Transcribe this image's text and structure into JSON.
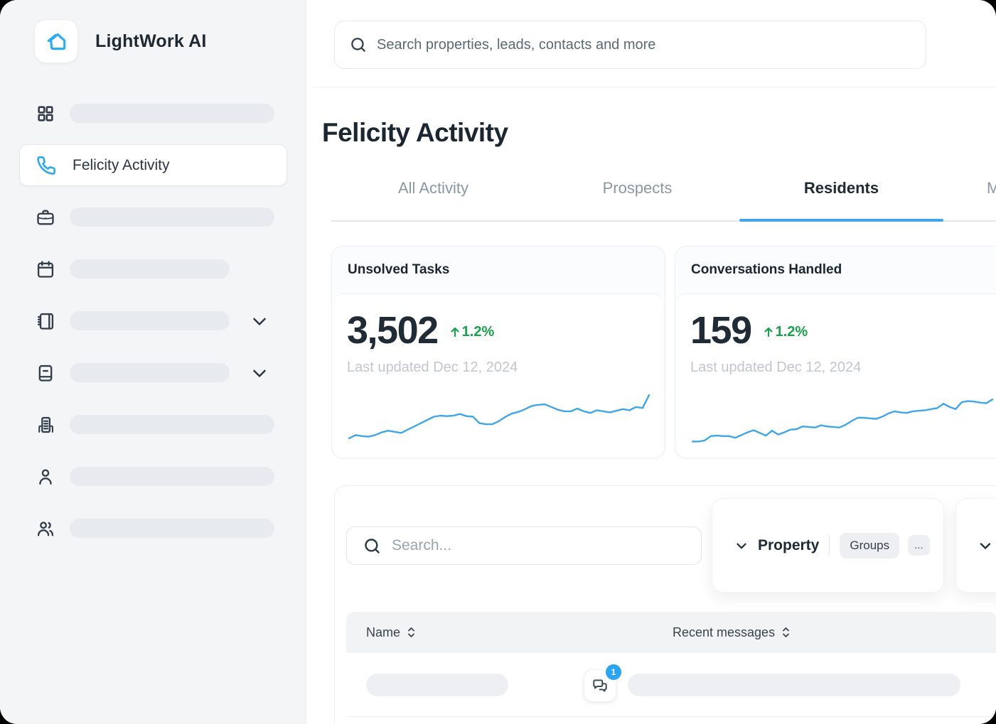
{
  "app": {
    "brand": "LightWork AI"
  },
  "sidebar": {
    "logo_label": "LightWork AI",
    "active_item": {
      "label": "Felicity Activity",
      "icon": "phone-icon"
    },
    "skeleton_icons": [
      "grid-icon",
      "briefcase-icon",
      "calendar-icon",
      "notebook-icon",
      "book-icon",
      "building-icon",
      "user-icon",
      "users-icon"
    ]
  },
  "topbar": {
    "search_placeholder": "Search properties, leads, contacts and more"
  },
  "page": {
    "title": "Felicity Activity"
  },
  "tabs": {
    "items": [
      {
        "label": "All Activity",
        "active": false
      },
      {
        "label": "Prospects",
        "active": false
      },
      {
        "label": "Residents",
        "active": true
      },
      {
        "label": "M",
        "active": false,
        "note": "partially visible at right edge"
      }
    ]
  },
  "cards": [
    {
      "title": "Unsolved Tasks",
      "value": "3,502",
      "delta": "1.2%",
      "delta_direction": "up",
      "updated": "Last updated Dec 12, 2024",
      "sparkline": [
        12,
        18,
        16,
        15,
        18,
        23,
        26,
        24,
        22,
        28,
        34,
        40,
        46,
        52,
        54,
        53,
        54,
        57,
        53,
        52,
        40,
        38,
        38,
        44,
        52,
        58,
        61,
        66,
        72,
        74,
        75,
        70,
        65,
        62,
        62,
        67,
        62,
        59,
        64,
        62,
        60,
        63,
        66,
        64,
        70,
        68,
        92
      ]
    },
    {
      "title": "Conversations Handled",
      "value": "159",
      "delta": "1.2%",
      "delta_direction": "up",
      "updated": "Last updated Dec 12, 2024",
      "sparkline": [
        6,
        6,
        8,
        16,
        17,
        16,
        16,
        13,
        18,
        23,
        27,
        22,
        17,
        26,
        19,
        23,
        28,
        29,
        34,
        33,
        32,
        36,
        34,
        33,
        32,
        37,
        44,
        50,
        50,
        49,
        48,
        52,
        58,
        62,
        60,
        59,
        62,
        63,
        64,
        66,
        68,
        76,
        70,
        66,
        79,
        81,
        80,
        78,
        77,
        84
      ]
    }
  ],
  "filters": {
    "search_placeholder": "Search...",
    "property_label": "Property",
    "groups_label": "Groups",
    "more_label": "..."
  },
  "table": {
    "columns": [
      "Name",
      "Recent messages"
    ],
    "rows": [
      {
        "badge_count": "1"
      }
    ]
  },
  "chart_data": [
    {
      "type": "line",
      "title": "Unsolved Tasks sparkline",
      "values": [
        12,
        18,
        16,
        15,
        18,
        23,
        26,
        24,
        22,
        28,
        34,
        40,
        46,
        52,
        54,
        53,
        54,
        57,
        53,
        52,
        40,
        38,
        38,
        44,
        52,
        58,
        61,
        66,
        72,
        74,
        75,
        70,
        65,
        62,
        62,
        67,
        62,
        59,
        64,
        62,
        60,
        63,
        66,
        64,
        70,
        68,
        92
      ],
      "ylim": [
        0,
        100
      ],
      "grid": false,
      "legend": "none"
    },
    {
      "type": "line",
      "title": "Conversations Handled sparkline",
      "values": [
        6,
        6,
        8,
        16,
        17,
        16,
        16,
        13,
        18,
        23,
        27,
        22,
        17,
        26,
        19,
        23,
        28,
        29,
        34,
        33,
        32,
        36,
        34,
        33,
        32,
        37,
        44,
        50,
        50,
        49,
        48,
        52,
        58,
        62,
        60,
        59,
        62,
        63,
        64,
        66,
        68,
        76,
        70,
        66,
        79,
        81,
        80,
        78,
        77,
        84
      ],
      "ylim": [
        0,
        100
      ],
      "grid": false,
      "legend": "none"
    }
  ],
  "colors": {
    "accent_blue": "#29a9f2",
    "spark_blue": "#3fa6e9",
    "green": "#16a34a",
    "sidebar_bg": "#f4f5f6",
    "skeleton": "#e7eaee",
    "table_header_bg": "#f1f3f5"
  }
}
